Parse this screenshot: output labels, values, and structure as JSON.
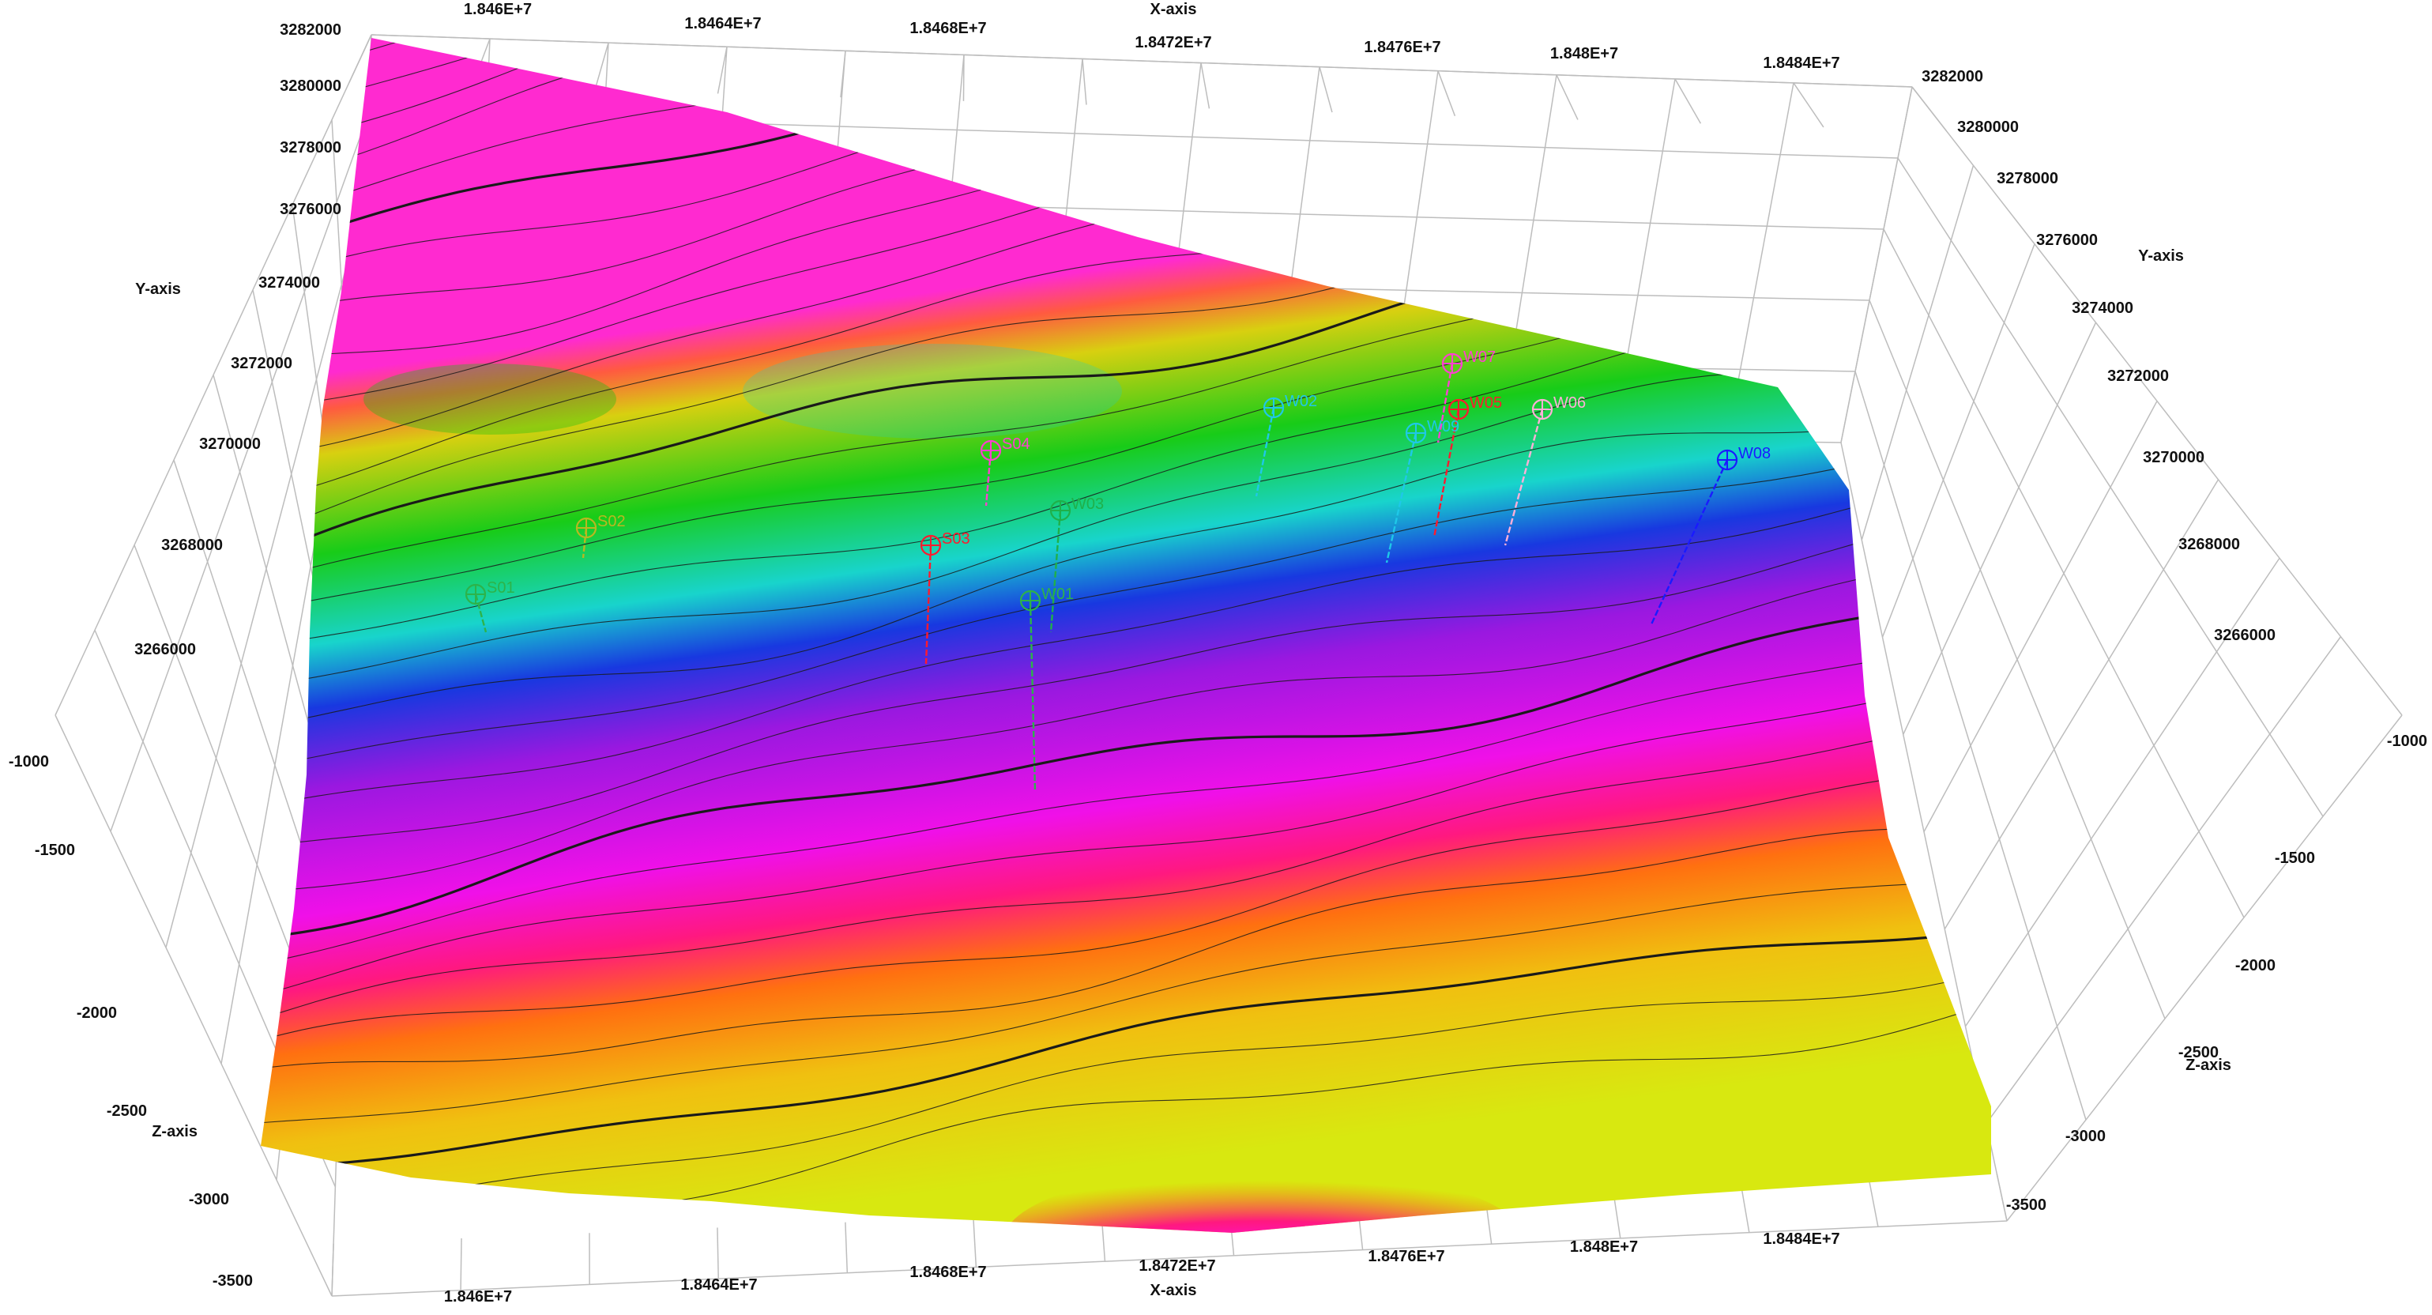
{
  "chart_data": {
    "type": "surface-3d",
    "axes": {
      "x": {
        "label": "X-axis",
        "ticks_back": [
          "1.846E+7",
          "1.8464E+7",
          "1.8468E+7",
          "1.8472E+7",
          "1.8476E+7",
          "1.848E+7",
          "1.8484E+7"
        ],
        "ticks_front": [
          "1.846E+7",
          "1.8464E+7",
          "1.8468E+7",
          "1.8472E+7",
          "1.8476E+7",
          "1.848E+7",
          "1.8484E+7"
        ]
      },
      "y": {
        "label": "Y-axis",
        "ticks": [
          "3282000",
          "3280000",
          "3278000",
          "3276000",
          "3274000",
          "3272000",
          "3270000",
          "3268000",
          "3266000"
        ]
      },
      "z": {
        "label": "Z-axis",
        "ticks": [
          "-1000",
          "-1500",
          "-2000",
          "-2500",
          "-3000",
          "-3500"
        ]
      }
    },
    "wells": [
      {
        "name": "S01",
        "color": "#2db34a"
      },
      {
        "name": "S02",
        "color": "#b8b820"
      },
      {
        "name": "S03",
        "color": "#ff1a2e"
      },
      {
        "name": "S04",
        "color": "#ff3fd0"
      },
      {
        "name": "W01",
        "color": "#2db34a"
      },
      {
        "name": "W02",
        "color": "#1fc8e8"
      },
      {
        "name": "W03",
        "color": "#1fb04a"
      },
      {
        "name": "W05",
        "color": "#ff1a2e"
      },
      {
        "name": "W06",
        "color": "#ffb0d8"
      },
      {
        "name": "W07",
        "color": "#ff3fd0"
      },
      {
        "name": "W08",
        "color": "#1a1aff"
      },
      {
        "name": "W09",
        "color": "#1fc8e8"
      }
    ],
    "colormap": [
      "#e020d8",
      "#ff2a8a",
      "#ff7a10",
      "#ffc810",
      "#c8e010",
      "#10c810",
      "#10d8d8",
      "#1848e8",
      "#9020e8",
      "#ff10f0"
    ],
    "grid": true
  }
}
